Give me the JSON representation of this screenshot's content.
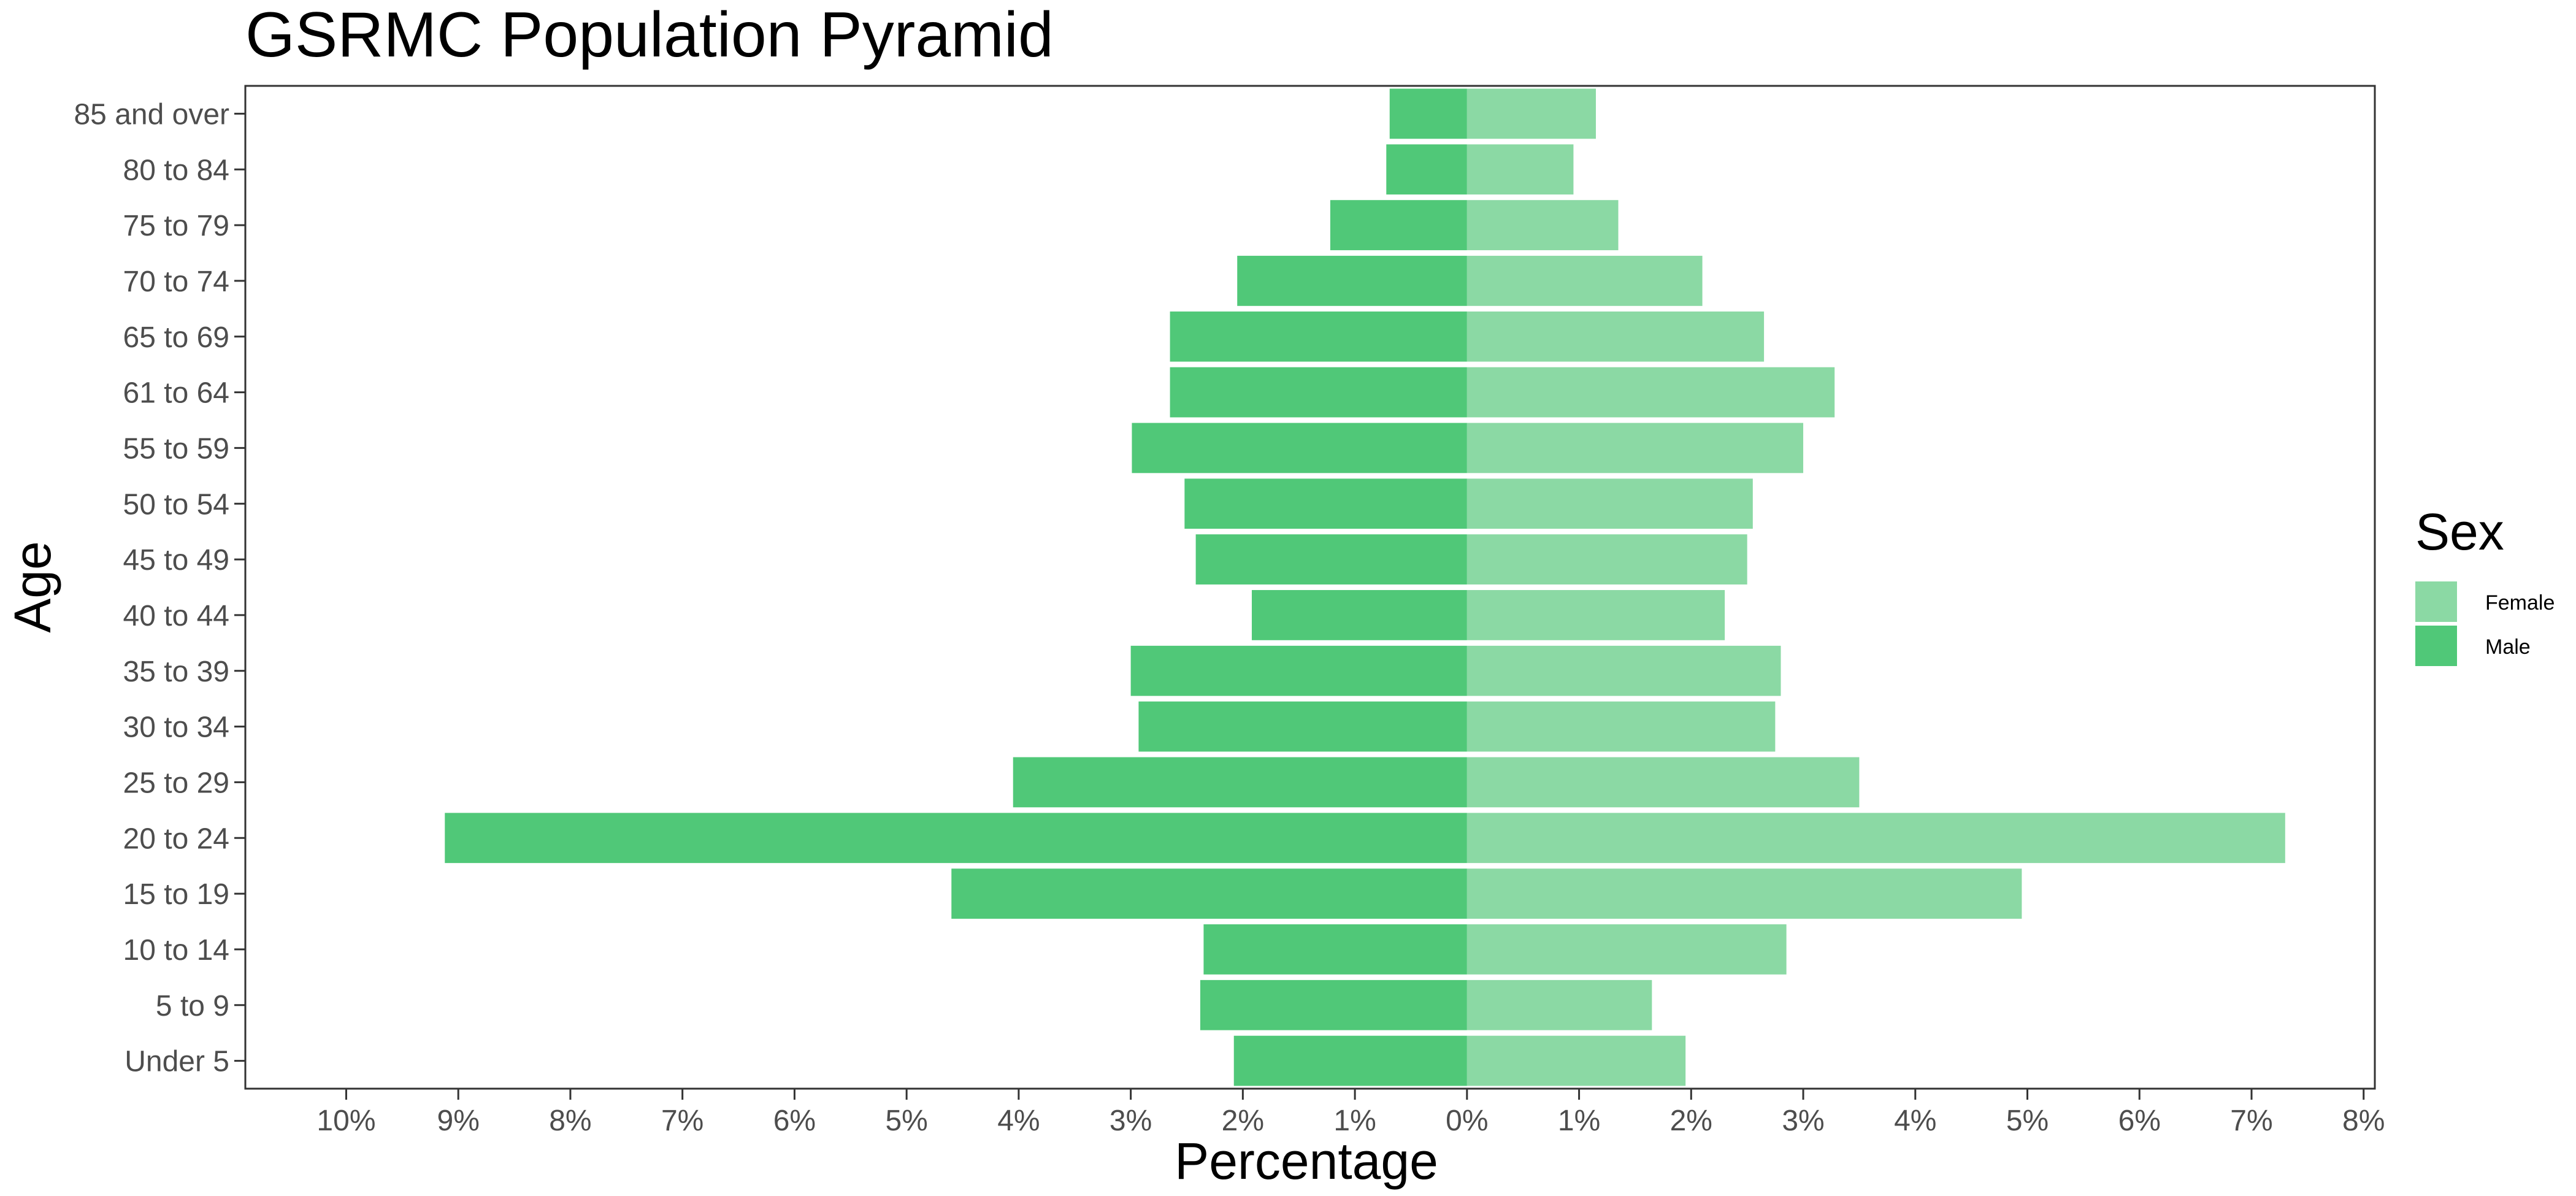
{
  "chart_data": {
    "type": "bar",
    "orientation": "horizontal",
    "title": "GSRMC Population Pyramid",
    "xlabel": "Percentage",
    "ylabel": "Age",
    "categories": [
      "Under 5",
      "5 to 9",
      "10 to 14",
      "15 to 19",
      "20 to 24",
      "25 to 29",
      "30 to 34",
      "35 to 39",
      "40 to 44",
      "45 to 49",
      "50 to 54",
      "55 to 59",
      "61 to 64",
      "65 to 69",
      "70 to 74",
      "75 to 79",
      "80 to 84",
      "85 and over"
    ],
    "series": [
      {
        "name": "Female",
        "color": "#8bd9a4",
        "values": [
          1.95,
          1.65,
          2.85,
          4.95,
          7.3,
          3.5,
          2.75,
          2.8,
          2.3,
          2.5,
          2.55,
          3.0,
          3.28,
          2.65,
          2.1,
          1.35,
          0.95,
          1.15
        ]
      },
      {
        "name": "Male",
        "color": "#50c878",
        "values": [
          -2.08,
          -2.38,
          -2.35,
          -4.6,
          -9.12,
          -4.05,
          -2.93,
          -3.0,
          -1.92,
          -2.42,
          -2.52,
          -2.99,
          -2.65,
          -2.65,
          -2.05,
          -1.22,
          -0.72,
          -0.69
        ]
      }
    ],
    "xlim": [
      -10.9,
      8.1
    ],
    "xticks": [
      -10,
      -9,
      -8,
      -7,
      -6,
      -5,
      -4,
      -3,
      -2,
      -1,
      0,
      1,
      2,
      3,
      4,
      5,
      6,
      7,
      8
    ],
    "xtick_labels": [
      "10%",
      "9%",
      "8%",
      "7%",
      "6%",
      "5%",
      "4%",
      "3%",
      "2%",
      "1%",
      "0%",
      "1%",
      "2%",
      "3%",
      "4%",
      "5%",
      "6%",
      "7%",
      "8%"
    ],
    "grid": false,
    "legend": {
      "title": "Sex",
      "position": "right",
      "items": [
        "Female",
        "Male"
      ]
    }
  }
}
